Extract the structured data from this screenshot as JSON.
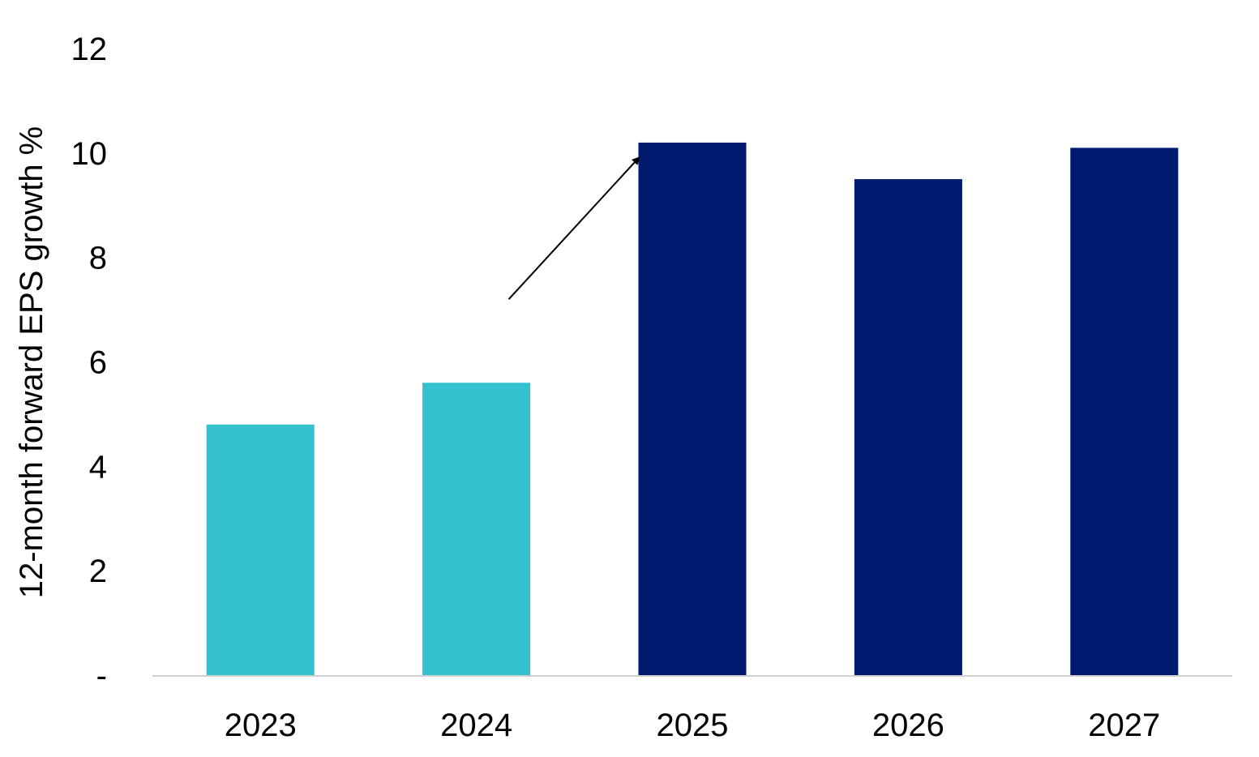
{
  "chart_data": {
    "type": "bar",
    "title": "",
    "xlabel": "",
    "ylabel": "12-month forward EPS growth %",
    "categories": [
      "2023",
      "2024",
      "2025",
      "2026",
      "2027"
    ],
    "values": [
      4.8,
      5.6,
      10.2,
      9.5,
      10.1
    ],
    "bar_colors": [
      "#33C1CF",
      "#33C1CF",
      "#001A70",
      "#001A70",
      "#001A70"
    ],
    "ylim": [
      0,
      12
    ],
    "yticks": [
      {
        "value": 0,
        "label": "-"
      },
      {
        "value": 2,
        "label": "2"
      },
      {
        "value": 4,
        "label": "4"
      },
      {
        "value": 6,
        "label": "6"
      },
      {
        "value": 8,
        "label": "8"
      },
      {
        "value": 10,
        "label": "10"
      },
      {
        "value": 12,
        "label": "12"
      }
    ],
    "grid": false,
    "legend": "none",
    "annotation": {
      "type": "arrow",
      "from": {
        "category_position": 1.15,
        "y": 7.2
      },
      "to": {
        "category_position": 1.75,
        "y": 9.9
      }
    },
    "axis_color": "#D0D0D0"
  }
}
